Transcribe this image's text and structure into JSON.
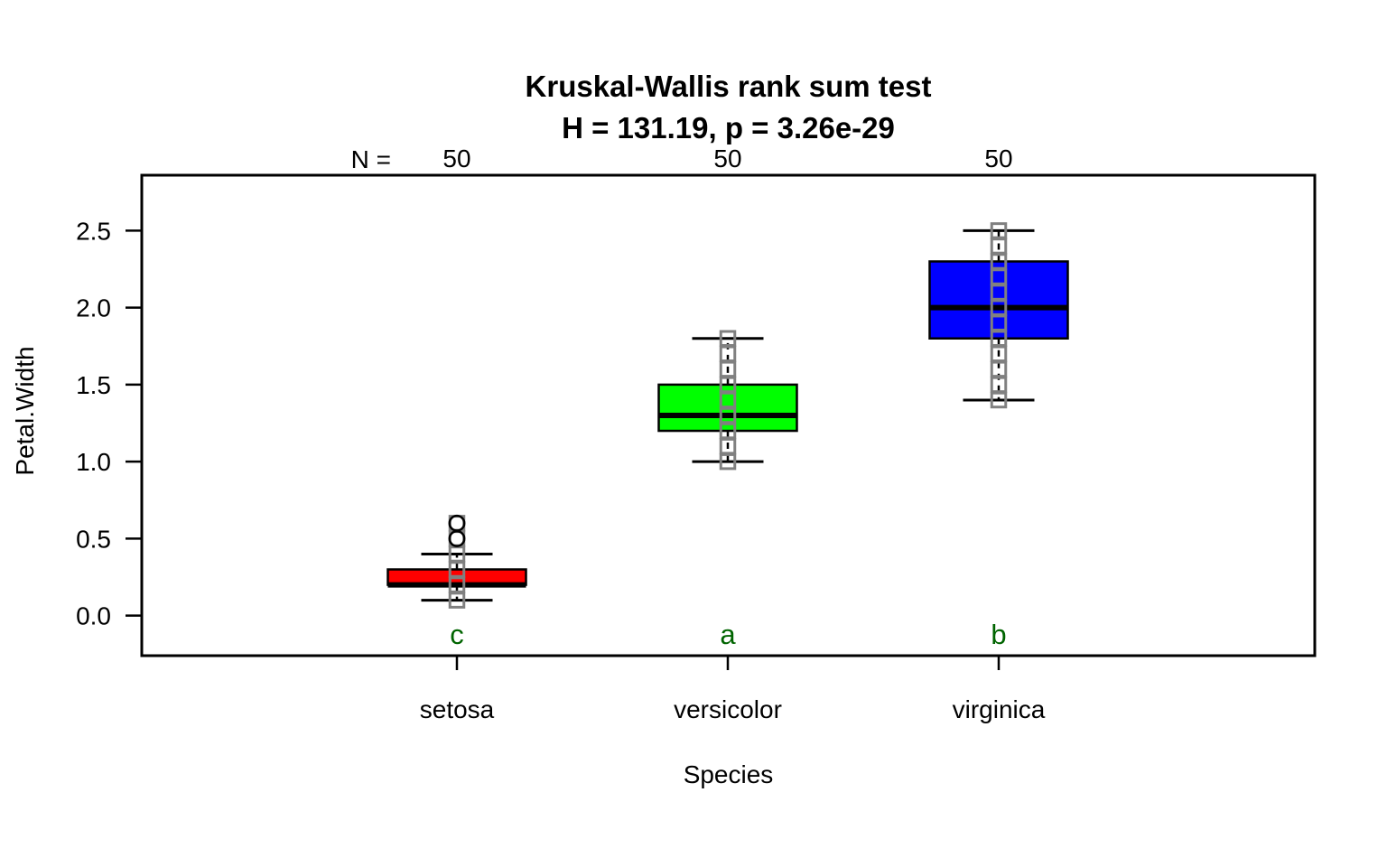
{
  "title": "Kruskal-Wallis rank sum test",
  "subtitle": "H = 131.19, p = 3.26e-29",
  "axes": {
    "ylabel": "Petal.Width",
    "xlabel": "Species",
    "n_prefix": "N ="
  },
  "chart_data": {
    "type": "boxplot",
    "title": "Kruskal-Wallis rank sum test",
    "subtitle": "H = 131.19, p = 3.26e-29",
    "xlabel": "Species",
    "ylabel": "Petal.Width",
    "ylim": [
      -0.26,
      2.86
    ],
    "yticks": [
      0.0,
      0.5,
      1.0,
      1.5,
      2.0,
      2.5
    ],
    "categories": [
      "setosa",
      "versicolor",
      "virginica"
    ],
    "n_prefix": "N =",
    "legend_position": "none",
    "grid": false,
    "colors": {
      "letter": "#006400",
      "point_outline": "#808080",
      "box_border": "#000000",
      "outlier_stroke": "#000000",
      "background": "#ffffff"
    },
    "groups": [
      {
        "category": "setosa",
        "n": 50,
        "letter": "c",
        "color": "#ff0000",
        "stats": {
          "lower_whisker": 0.1,
          "q1": 0.2,
          "median": 0.2,
          "q3": 0.3,
          "upper_whisker": 0.4
        },
        "outliers": [
          0.5,
          0.6
        ],
        "points": [
          0.1,
          0.2,
          0.3,
          0.4,
          0.5,
          0.6
        ]
      },
      {
        "category": "versicolor",
        "n": 50,
        "letter": "a",
        "color": "#00ff00",
        "stats": {
          "lower_whisker": 1.0,
          "q1": 1.2,
          "median": 1.3,
          "q3": 1.5,
          "upper_whisker": 1.8
        },
        "outliers": [],
        "points": [
          1.0,
          1.1,
          1.2,
          1.3,
          1.4,
          1.5,
          1.6,
          1.7,
          1.8
        ]
      },
      {
        "category": "virginica",
        "n": 50,
        "letter": "b",
        "color": "#0000ff",
        "stats": {
          "lower_whisker": 1.4,
          "q1": 1.8,
          "median": 2.0,
          "q3": 2.3,
          "upper_whisker": 2.5
        },
        "outliers": [],
        "points": [
          1.4,
          1.5,
          1.6,
          1.7,
          1.8,
          1.9,
          2.0,
          2.1,
          2.2,
          2.3,
          2.4,
          2.5
        ]
      }
    ]
  }
}
